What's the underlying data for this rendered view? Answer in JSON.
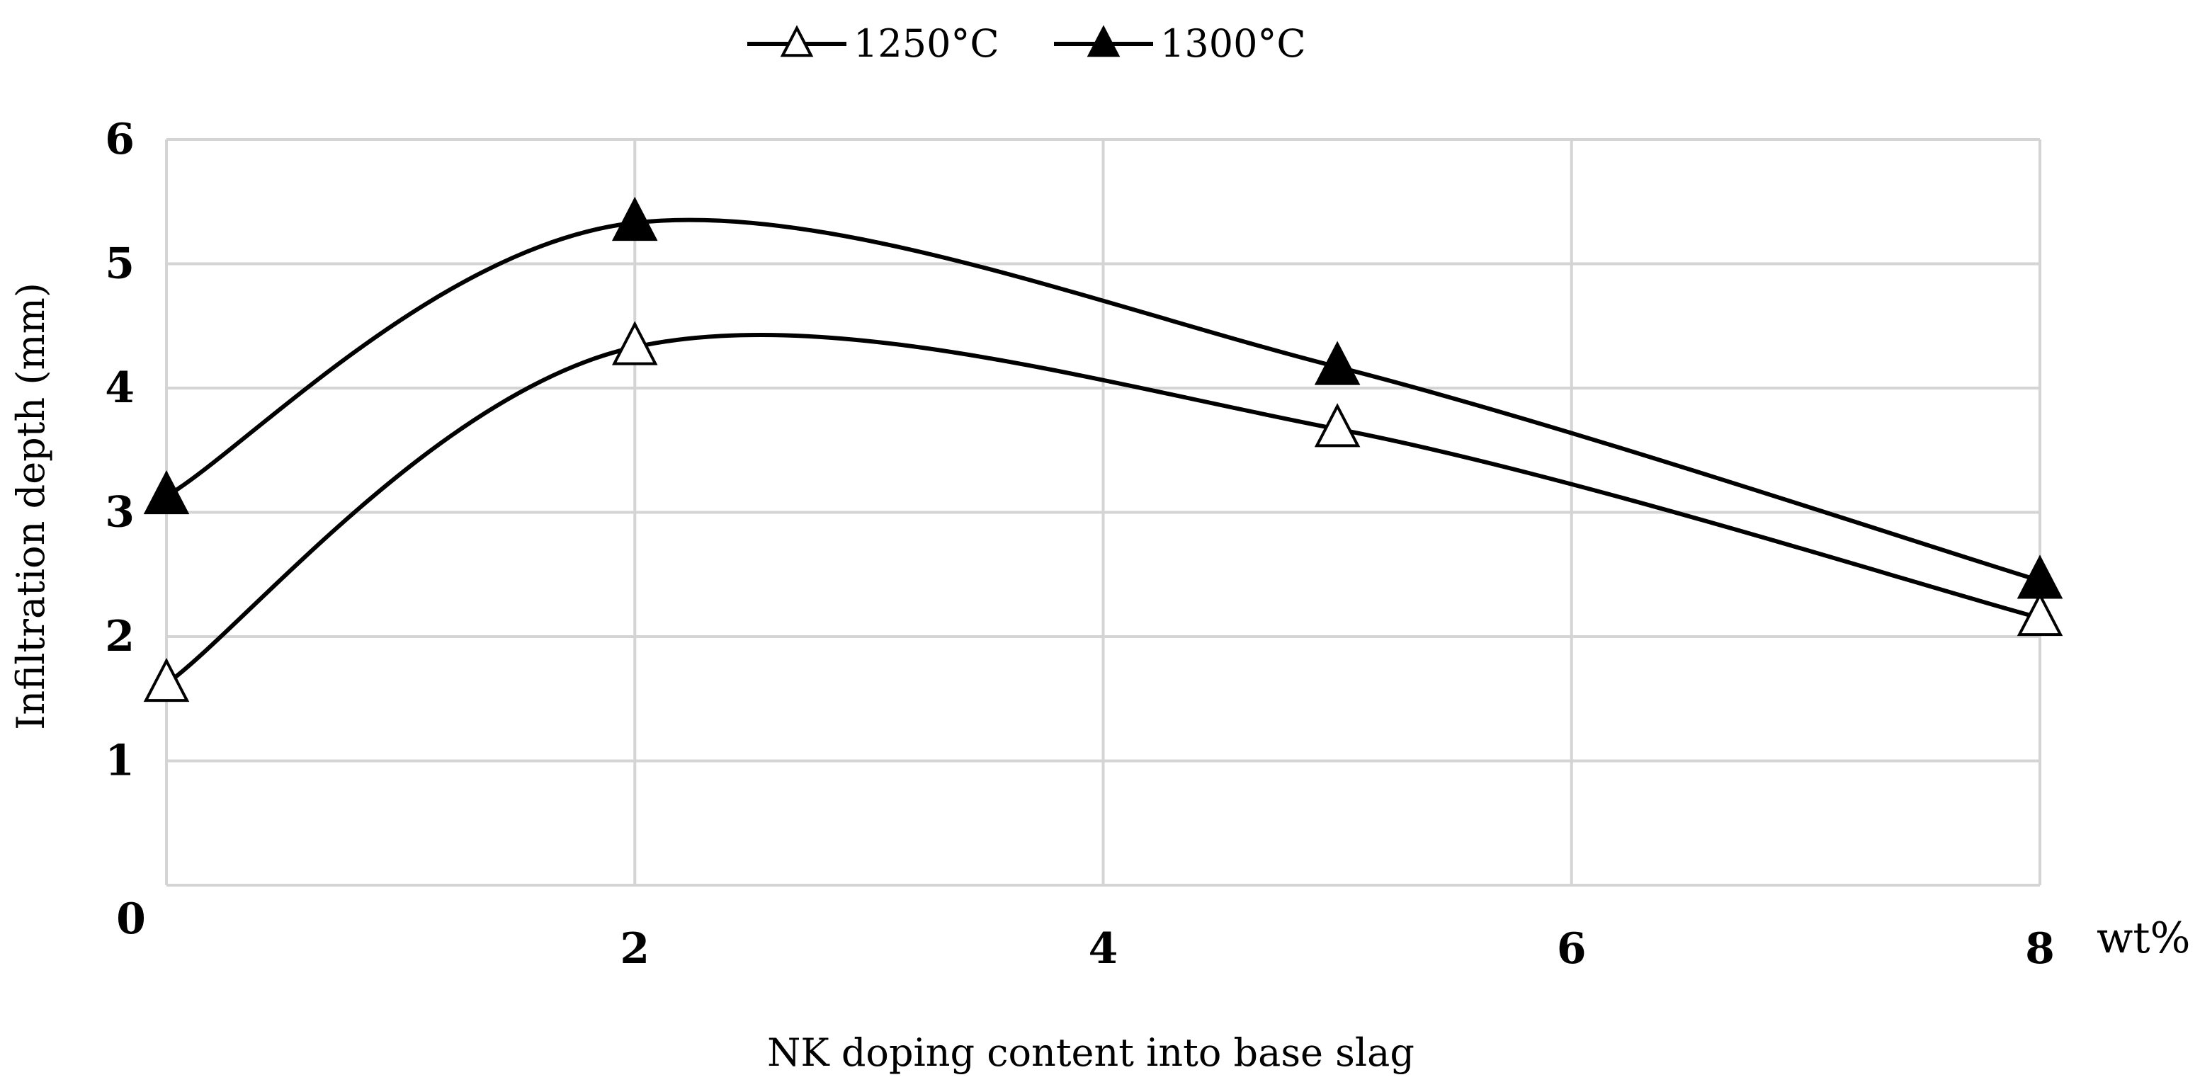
{
  "chart_data": {
    "type": "line",
    "title": "",
    "xlabel": "NK doping content into base slag",
    "ylabel": "Infiltration depth (mm)",
    "x_unit_label": "wt%",
    "xlim": [
      0,
      8
    ],
    "ylim": [
      0,
      6
    ],
    "x_ticks": [
      0,
      2,
      4,
      6,
      8
    ],
    "y_ticks": [
      1,
      2,
      3,
      4,
      5,
      6
    ],
    "x_tick_labels": [
      "0",
      "2",
      "4",
      "6",
      "8"
    ],
    "y_tick_labels": [
      "1",
      "2",
      "3",
      "4",
      "5",
      "6"
    ],
    "grid": true,
    "smooth": true,
    "legend_position": "top-center",
    "series": [
      {
        "name": "1250°C",
        "marker": "triangle-open",
        "color": "#000000",
        "x": [
          0,
          2,
          5,
          8
        ],
        "values": [
          1.62,
          4.33,
          3.67,
          2.15
        ]
      },
      {
        "name": "1300°C",
        "marker": "triangle-filled",
        "color": "#000000",
        "x": [
          0,
          2,
          5,
          8
        ],
        "values": [
          3.13,
          5.33,
          4.17,
          2.45
        ]
      }
    ]
  }
}
